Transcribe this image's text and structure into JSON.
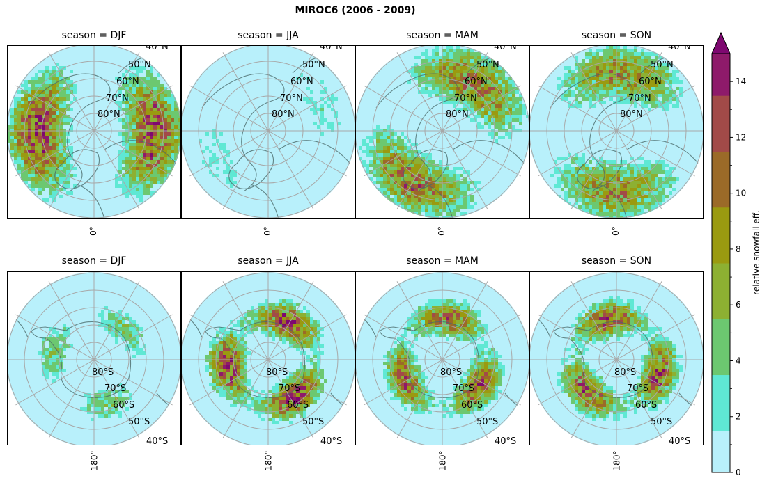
{
  "chart_data": {
    "type": "heatmap",
    "title": "MIROC6 (2006 - 2009)",
    "colorbar": {
      "label": "relative snowfall eff.",
      "range": [
        0,
        15
      ],
      "extend": "max",
      "ticks": [
        0,
        2,
        4,
        6,
        8,
        10,
        12,
        14
      ],
      "tick_labels": [
        "0",
        "2",
        "4",
        "6",
        "8",
        "10",
        "12",
        "14"
      ],
      "colors": [
        "#b8f0fb",
        "#5fe8d4",
        "#6cc870",
        "#8db032",
        "#9a9a10",
        "#9b6a28",
        "#a24a48",
        "#8e1a6a",
        "#7e0870"
      ]
    },
    "panels": [
      {
        "id": "nh-djf",
        "hemisphere": "north",
        "title": "season = DJF",
        "lat_labels": [
          "40°N",
          "50°N",
          "60°N",
          "70°N",
          "80°N"
        ],
        "lon_label": "0°",
        "intensity": 0.85
      },
      {
        "id": "nh-jja",
        "hemisphere": "north",
        "title": "season = JJA",
        "lat_labels": [
          "40°N",
          "50°N",
          "60°N",
          "70°N",
          "80°N"
        ],
        "lon_label": "0°",
        "intensity": 0.15
      },
      {
        "id": "nh-mam",
        "hemisphere": "north",
        "title": "season = MAM",
        "lat_labels": [
          "40°N",
          "50°N",
          "60°N",
          "70°N",
          "80°N"
        ],
        "lon_label": "0°",
        "intensity": 0.7
      },
      {
        "id": "nh-son",
        "hemisphere": "north",
        "title": "season = SON",
        "lat_labels": [
          "40°N",
          "50°N",
          "60°N",
          "70°N",
          "80°N"
        ],
        "lon_label": "0°",
        "intensity": 0.6
      },
      {
        "id": "sh-djf",
        "hemisphere": "south",
        "title": "season = DJF",
        "lat_labels": [
          "80°S",
          "70°S",
          "60°S",
          "50°S",
          "40°S"
        ],
        "lon_label": "180°",
        "intensity": 0.3
      },
      {
        "id": "sh-jja",
        "hemisphere": "south",
        "title": "season = JJA",
        "lat_labels": [
          "80°S",
          "70°S",
          "60°S",
          "50°S",
          "40°S"
        ],
        "lon_label": "180°",
        "intensity": 0.9
      },
      {
        "id": "sh-mam",
        "hemisphere": "south",
        "title": "season = MAM",
        "lat_labels": [
          "80°S",
          "70°S",
          "60°S",
          "50°S",
          "40°S"
        ],
        "lon_label": "180°",
        "intensity": 0.75
      },
      {
        "id": "sh-son",
        "hemisphere": "south",
        "title": "season = SON",
        "lat_labels": [
          "80°S",
          "70°S",
          "60°S",
          "50°S",
          "40°S"
        ],
        "lon_label": "180°",
        "intensity": 0.8
      }
    ]
  }
}
